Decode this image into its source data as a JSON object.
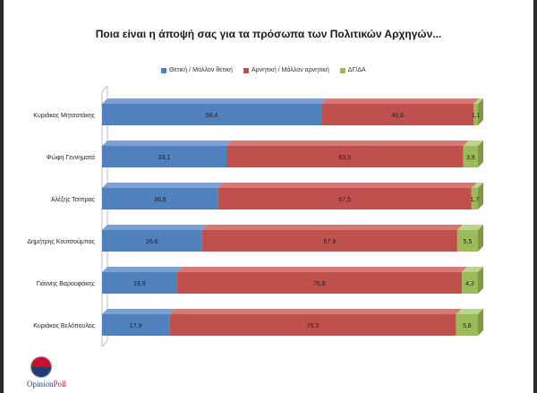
{
  "colors": {
    "positive": "#4f81bd",
    "positive_top": "#7aa0d6",
    "negative": "#c0504d",
    "negative_top": "#d87875",
    "dk": "#9bbb59",
    "dk_top": "#bcd48a"
  },
  "chart_data": {
    "type": "bar",
    "orientation": "horizontal",
    "stacked": true,
    "percent": true,
    "title": "Ποια είναι η άποψή σας για τα πρόσωπα των Πολιτικών Αρχηγών...",
    "legend_position": "top",
    "categories": [
      "Κυριάκος Μητσοτάκης",
      "Φώφη Γεννηματά",
      "Αλέξης Τσίπρας",
      "Δημήτρης Κουτσούμπας",
      "Γιάννης Βαρουφάκης",
      "Κυριάκος Βελόπουλος"
    ],
    "series": [
      {
        "name": "Θετική / Μάλλον θετική",
        "values": [
          58.4,
          33.1,
          30.8,
          26.6,
          19.9,
          17.9
        ],
        "labels": [
          "58,4",
          "33,1",
          "30,8",
          "26,6",
          "19,9",
          "17,9"
        ]
      },
      {
        "name": "Αρνητική / Μάλλον αρνητική",
        "values": [
          40.6,
          63.0,
          67.5,
          67.9,
          75.8,
          76.3
        ],
        "labels": [
          "40,6",
          "63,0",
          "67,5",
          "67,9",
          "75,8",
          "76,3"
        ]
      },
      {
        "name": "ΔΓ/ΔΑ",
        "values": [
          1.1,
          3.9,
          1.7,
          5.5,
          4.3,
          5.8
        ],
        "labels": [
          "1,1",
          "3,9",
          "1,7",
          "5,5",
          "4,3",
          "5,8"
        ]
      }
    ]
  },
  "logo": {
    "text_a": "Opinion",
    "text_b": "Poll"
  }
}
